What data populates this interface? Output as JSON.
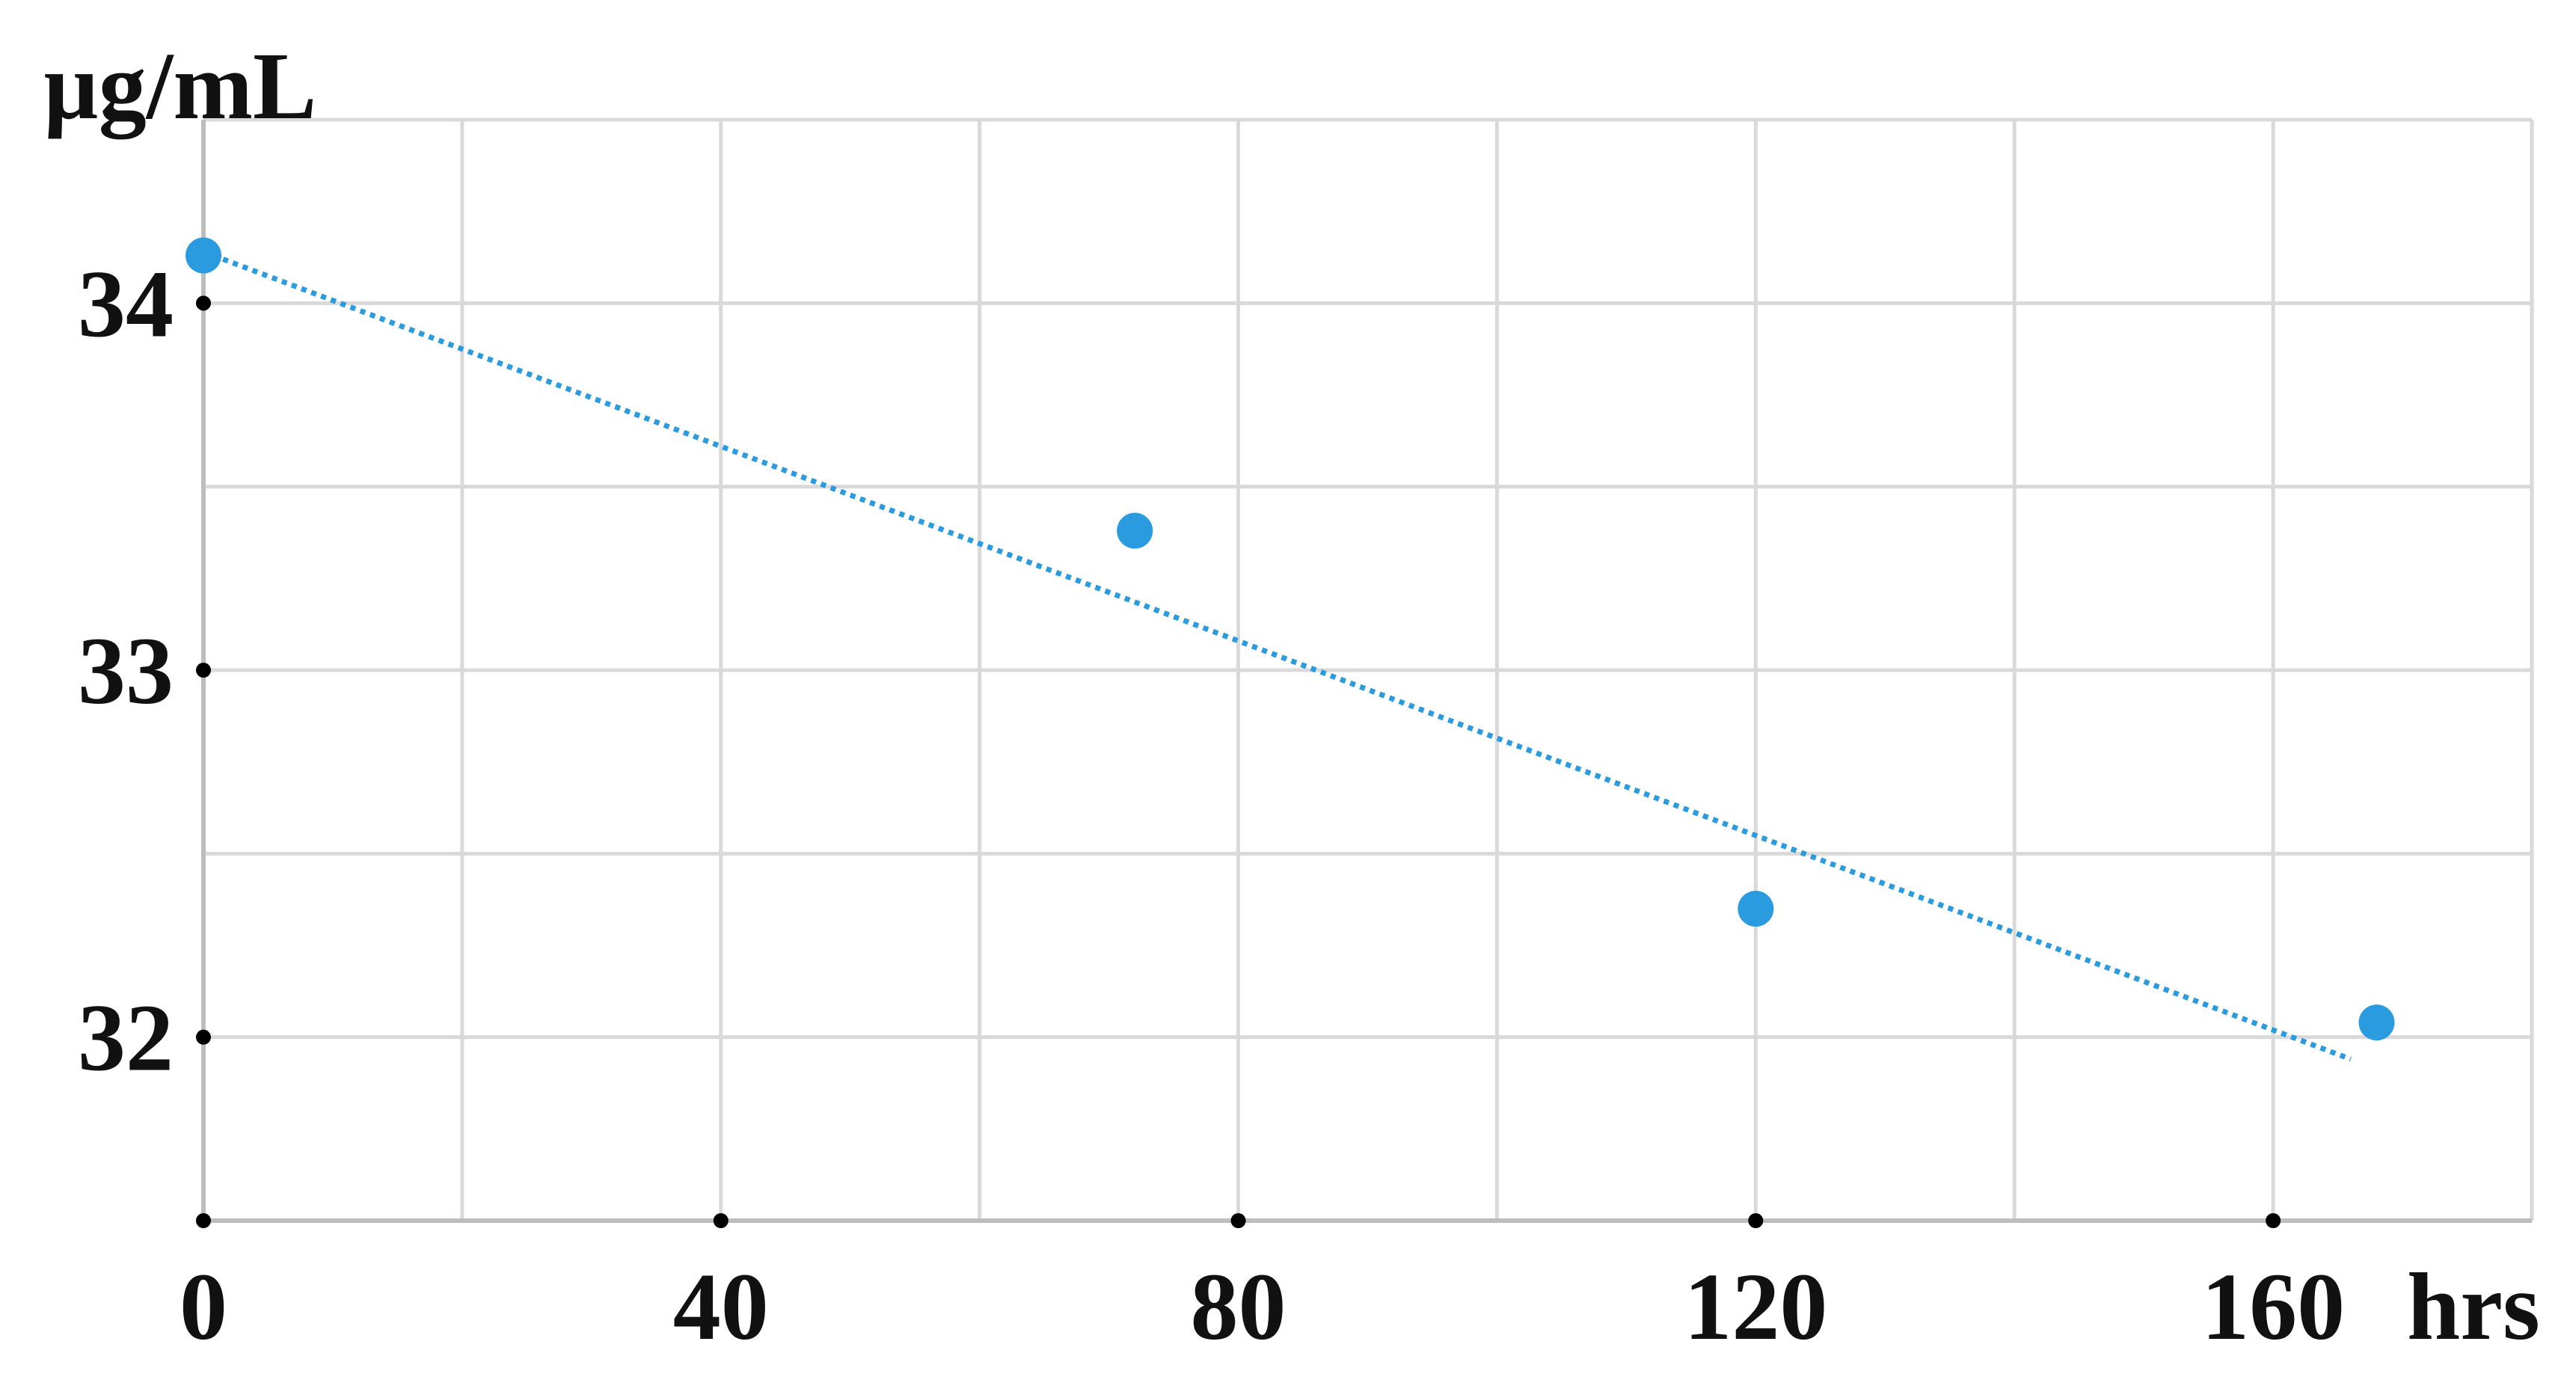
{
  "chart_data": {
    "type": "scatter",
    "title": "",
    "xlabel": "hrs",
    "ylabel": "µg/mL",
    "xlim": [
      0,
      180
    ],
    "ylim": [
      31.5,
      34.5
    ],
    "grid": true,
    "x_ticks": [
      0,
      40,
      80,
      120,
      160
    ],
    "x_tick_labels": [
      "0",
      "40",
      "80",
      "120",
      "160"
    ],
    "y_ticks": [
      32,
      33,
      34
    ],
    "y_tick_labels": [
      "32",
      "33",
      "34"
    ],
    "series": [
      {
        "points": [
          {
            "x": 0,
            "y": 34.13
          },
          {
            "x": 72,
            "y": 33.38
          },
          {
            "x": 120,
            "y": 32.35
          },
          {
            "x": 168,
            "y": 32.04
          }
        ]
      }
    ],
    "trendline": {
      "style": "dotted",
      "from": {
        "x": 0,
        "y": 34.14
      },
      "to": {
        "x": 166,
        "y": 31.94
      }
    },
    "colors": {
      "points": "#2b9be0",
      "trendline": "#2b9be0",
      "grid": "#d9d9d9",
      "axis": "#bdbdbd",
      "tick_marks": "#000000",
      "text": "#111111"
    }
  }
}
